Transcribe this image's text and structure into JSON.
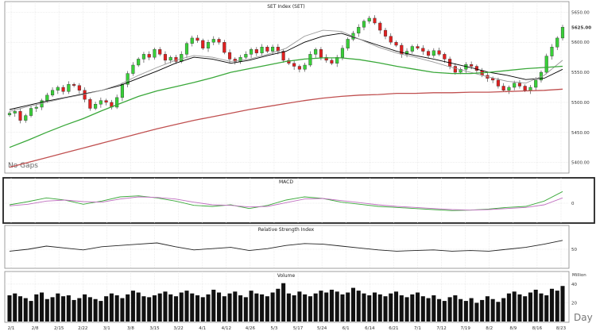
{
  "chart_data": [
    {
      "type": "candlestick",
      "title": "SET Index (SET)",
      "note": "No Gaps",
      "yticks": [
        5400,
        5450,
        5500,
        5550,
        5600,
        5650
      ],
      "ytick_labels": [
        "5400.00",
        "5450.00",
        "5500.00",
        "5550.00",
        "5600.00",
        "5650.00"
      ],
      "last_label": "5625.00",
      "ylim": [
        5385,
        5665
      ],
      "x_labels": [
        "2/1",
        "2/8",
        "2/15",
        "2/22",
        "3/1",
        "3/8",
        "3/15",
        "3/22",
        "4/1",
        "4/12",
        "4/26",
        "5/3",
        "5/17",
        "5/24",
        "6/1",
        "6/14",
        "6/21",
        "7/1",
        "7/12",
        "7/19",
        "8/2",
        "8/9",
        "8/16",
        "8/23"
      ],
      "grid": true,
      "ohlc_close": [
        5482,
        5485,
        5470,
        5478,
        5490,
        5492,
        5503,
        5512,
        5520,
        5525,
        5518,
        5530,
        5528,
        5520,
        5505,
        5490,
        5497,
        5503,
        5500,
        5492,
        5508,
        5530,
        5548,
        5562,
        5572,
        5580,
        5575,
        5588,
        5580,
        5570,
        5575,
        5568,
        5580,
        5598,
        5607,
        5603,
        5590,
        5600,
        5605,
        5600,
        5583,
        5572,
        5568,
        5575,
        5580,
        5588,
        5582,
        5592,
        5585,
        5592,
        5585,
        5570,
        5565,
        5560,
        5555,
        5562,
        5580,
        5588,
        5575,
        5570,
        5565,
        5575,
        5590,
        5605,
        5615,
        5625,
        5635,
        5640,
        5632,
        5620,
        5610,
        5600,
        5595,
        5580,
        5585,
        5593,
        5590,
        5585,
        5578,
        5586,
        5580,
        5572,
        5560,
        5550,
        5555,
        5563,
        5560,
        5553,
        5545,
        5540,
        5537,
        5527,
        5520,
        5525,
        5532,
        5527,
        5520,
        5525,
        5537,
        5550,
        5577,
        5592,
        5607,
        5625
      ],
      "moving_averages": [
        {
          "color": "#000000",
          "values": [
            5488,
            5495,
            5502,
            5508,
            5514,
            5520,
            5528,
            5540,
            5552,
            5565,
            5575,
            5572,
            5565,
            5570,
            5578,
            5585,
            5600,
            5610,
            5615,
            5605,
            5595,
            5585,
            5578,
            5572,
            5565,
            5558,
            5550,
            5545,
            5538,
            5540,
            5555
          ]
        },
        {
          "color": "#999999",
          "values": [
            5485,
            5493,
            5500,
            5507,
            5513,
            5520,
            5530,
            5545,
            5558,
            5570,
            5578,
            5575,
            5568,
            5572,
            5580,
            5590,
            5610,
            5620,
            5618,
            5605,
            5592,
            5582,
            5575,
            5567,
            5558,
            5550,
            5542,
            5535,
            5532,
            5545,
            5570
          ]
        },
        {
          "color": "#3aa83a",
          "values": [
            5425,
            5437,
            5450,
            5462,
            5473,
            5486,
            5498,
            5510,
            5519,
            5526,
            5533,
            5541,
            5550,
            5556,
            5562,
            5568,
            5572,
            5574,
            5574,
            5571,
            5566,
            5560,
            5555,
            5550,
            5548,
            5548,
            5550,
            5553,
            5556,
            5558,
            5560
          ]
        },
        {
          "color": "#c05050",
          "values": [
            5392,
            5400,
            5408,
            5416,
            5424,
            5432,
            5440,
            5448,
            5456,
            5463,
            5470,
            5476,
            5482,
            5488,
            5493,
            5498,
            5503,
            5507,
            5510,
            5512,
            5513,
            5515,
            5515,
            5516,
            5516,
            5517,
            5517,
            5518,
            5519,
            5520,
            5522
          ]
        }
      ]
    },
    {
      "type": "line",
      "title": "MACD",
      "yticks": [
        0
      ],
      "ytick_labels": [
        "0"
      ],
      "series": [
        {
          "color": "#3aa83a",
          "values": [
            -3,
            3,
            10,
            6,
            -2,
            4,
            12,
            14,
            10,
            4,
            -4,
            -6,
            -3,
            -10,
            -4,
            6,
            12,
            9,
            2,
            -2,
            -6,
            -8,
            -10,
            -12,
            -14,
            -13,
            -11,
            -8,
            -6,
            4,
            22
          ]
        },
        {
          "color": "#c070c0",
          "values": [
            -5,
            -2,
            4,
            6,
            3,
            2,
            8,
            12,
            11,
            8,
            2,
            -3,
            -4,
            -7,
            -6,
            1,
            8,
            9,
            5,
            1,
            -3,
            -6,
            -8,
            -10,
            -12,
            -13,
            -12,
            -10,
            -8,
            -3,
            10
          ]
        }
      ]
    },
    {
      "type": "line",
      "title": "Relative Strength Index",
      "yticks": [
        50
      ],
      "ytick_labels": [
        "50"
      ],
      "series": [
        {
          "color": "#222222",
          "values": [
            44,
            50,
            60,
            54,
            48,
            58,
            62,
            66,
            70,
            58,
            48,
            52,
            56,
            46,
            52,
            62,
            68,
            66,
            60,
            54,
            48,
            44,
            46,
            48,
            44,
            46,
            44,
            50,
            56,
            66,
            78
          ]
        }
      ]
    },
    {
      "type": "bar",
      "title": "Volume",
      "unit_label": "Million",
      "yticks": [
        20,
        40
      ],
      "ytick_labels": [
        "20",
        "40"
      ],
      "values": [
        28,
        30,
        27,
        25,
        22,
        29,
        31,
        24,
        26,
        30,
        27,
        28,
        23,
        25,
        29,
        26,
        24,
        22,
        27,
        30,
        28,
        25,
        29,
        33,
        31,
        27,
        26,
        28,
        30,
        32,
        29,
        27,
        31,
        33,
        30,
        28,
        26,
        29,
        34,
        31,
        27,
        30,
        32,
        28,
        26,
        33,
        30,
        29,
        27,
        31,
        35,
        41,
        30,
        28,
        32,
        29,
        27,
        30,
        33,
        31,
        34,
        32,
        29,
        31,
        36,
        33,
        30,
        28,
        31,
        29,
        27,
        30,
        32,
        28,
        26,
        29,
        31,
        27,
        25,
        28,
        24,
        22,
        26,
        28,
        24,
        22,
        25,
        20,
        23,
        27,
        24,
        21,
        25,
        30,
        32,
        29,
        27,
        31,
        34,
        30,
        28,
        35,
        33,
        38
      ]
    }
  ],
  "labels": {
    "corner_period": "Day"
  }
}
